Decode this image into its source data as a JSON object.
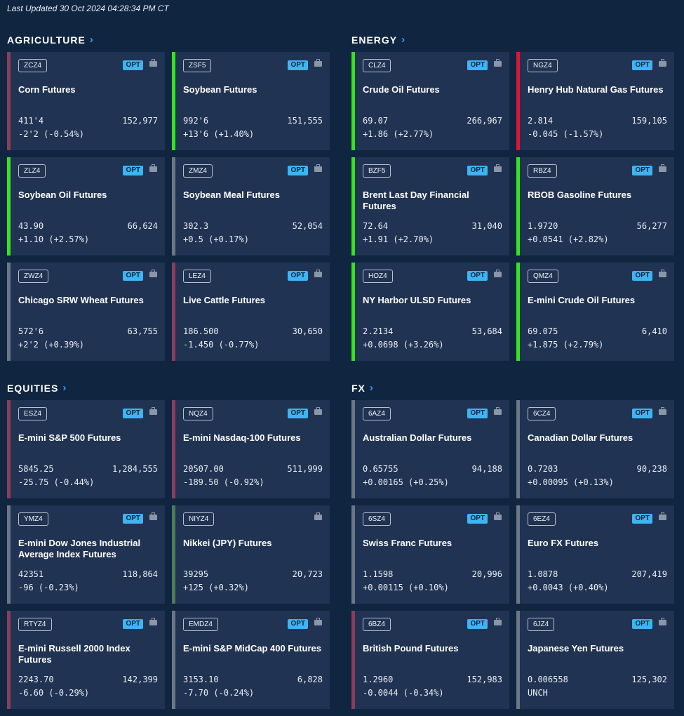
{
  "updated": "Last Updated 30 Oct 2024 04:28:34 PM CT",
  "opt_label": "OPT",
  "sections": {
    "agriculture": {
      "title": "AGRICULTURE",
      "cards": [
        {
          "symbol": "ZCZ4",
          "name": "Corn Futures",
          "price": "411'4",
          "volume": "152,977",
          "change": "-2'2 (-0.54%)"
        },
        {
          "symbol": "ZSF5",
          "name": "Soybean Futures",
          "price": "992'6",
          "volume": "151,555",
          "change": "+13'6 (+1.40%)"
        },
        {
          "symbol": "ZLZ4",
          "name": "Soybean Oil Futures",
          "price": "43.90",
          "volume": "66,624",
          "change": "+1.10 (+2.57%)"
        },
        {
          "symbol": "ZMZ4",
          "name": "Soybean Meal Futures",
          "price": "302.3",
          "volume": "52,054",
          "change": "+0.5 (+0.17%)"
        },
        {
          "symbol": "ZWZ4",
          "name": "Chicago SRW Wheat Futures",
          "price": "572'6",
          "volume": "63,755",
          "change": "+2'2 (+0.39%)"
        },
        {
          "symbol": "LEZ4",
          "name": "Live Cattle Futures",
          "price": "186.500",
          "volume": "30,650",
          "change": "-1.450 (-0.77%)"
        }
      ]
    },
    "energy": {
      "title": "ENERGY",
      "cards": [
        {
          "symbol": "CLZ4",
          "name": "Crude Oil Futures",
          "price": "69.07",
          "volume": "266,967",
          "change": "+1.86 (+2.77%)"
        },
        {
          "symbol": "NGZ4",
          "name": "Henry Hub Natural Gas Futures",
          "price": "2.814",
          "volume": "159,105",
          "change": "-0.045 (-1.57%)"
        },
        {
          "symbol": "BZF5",
          "name": "Brent Last Day Financial Futures",
          "price": "72.64",
          "volume": "31,040",
          "change": "+1.91 (+2.70%)"
        },
        {
          "symbol": "RBZ4",
          "name": "RBOB Gasoline Futures",
          "price": "1.9720",
          "volume": "56,277",
          "change": "+0.0541 (+2.82%)"
        },
        {
          "symbol": "HOZ4",
          "name": "NY Harbor ULSD Futures",
          "price": "2.2134",
          "volume": "53,684",
          "change": "+0.0698 (+3.26%)"
        },
        {
          "symbol": "QMZ4",
          "name": "E-mini Crude Oil Futures",
          "price": "69.075",
          "volume": "6,410",
          "change": "+1.875 (+2.79%)"
        }
      ]
    },
    "equities": {
      "title": "EQUITIES",
      "cards": [
        {
          "symbol": "ESZ4",
          "name": "E-mini S&P 500 Futures",
          "price": "5845.25",
          "volume": "1,284,555",
          "change": "-25.75 (-0.44%)"
        },
        {
          "symbol": "NQZ4",
          "name": "E-mini Nasdaq-100 Futures",
          "price": "20507.00",
          "volume": "511,999",
          "change": "-189.50 (-0.92%)"
        },
        {
          "symbol": "YMZ4",
          "name": "E-mini Dow Jones Industrial Average Index Futures",
          "price": "42351",
          "volume": "118,864",
          "change": "-96 (-0.23%)"
        },
        {
          "symbol": "NIYZ4",
          "name": "Nikkei (JPY) Futures",
          "price": "39295",
          "volume": "20,723",
          "change": "+125 (+0.32%)"
        },
        {
          "symbol": "RTYZ4",
          "name": "E-mini Russell 2000 Index Futures",
          "price": "2243.70",
          "volume": "142,399",
          "change": "-6.60 (-0.29%)"
        },
        {
          "symbol": "EMDZ4",
          "name": "E-mini S&P MidCap 400 Futures",
          "price": "3153.10",
          "volume": "6,828",
          "change": "-7.70 (-0.24%)"
        }
      ]
    },
    "fx": {
      "title": "FX",
      "cards": [
        {
          "symbol": "6AZ4",
          "name": "Australian Dollar Futures",
          "price": "0.65755",
          "volume": "94,188",
          "change": "+0.00165 (+0.25%)"
        },
        {
          "symbol": "6CZ4",
          "name": "Canadian Dollar Futures",
          "price": "0.7203",
          "volume": "90,238",
          "change": "+0.00095 (+0.13%)"
        },
        {
          "symbol": "6SZ4",
          "name": "Swiss Franc Futures",
          "price": "1.1598",
          "volume": "20,996",
          "change": "+0.00115 (+0.10%)"
        },
        {
          "symbol": "6EZ4",
          "name": "Euro FX Futures",
          "price": "1.0878",
          "volume": "207,419",
          "change": "+0.0043 (+0.40%)"
        },
        {
          "symbol": "6BZ4",
          "name": "British Pound Futures",
          "price": "1.2960",
          "volume": "152,983",
          "change": "-0.0044 (-0.34%)"
        },
        {
          "symbol": "6JZ4",
          "name": "Japanese Yen Futures",
          "price": "0.006558",
          "volume": "125,302",
          "change": "UNCH"
        }
      ]
    }
  }
}
